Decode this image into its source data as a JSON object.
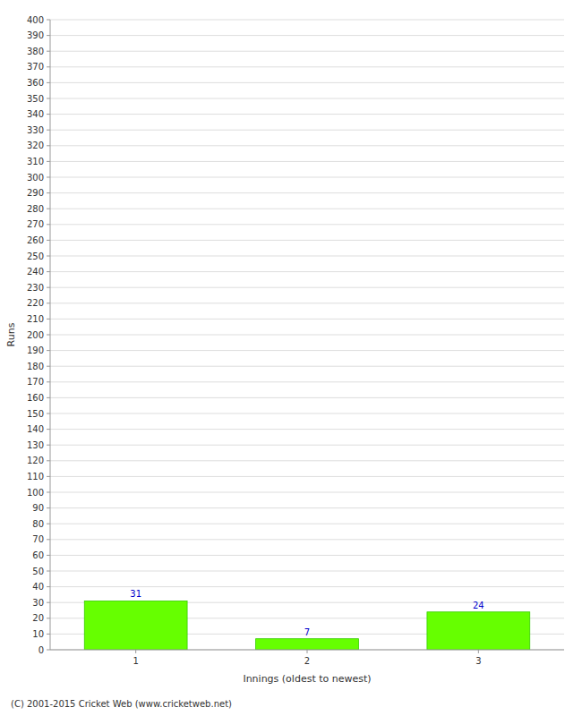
{
  "chart_data": {
    "type": "bar",
    "categories": [
      "1",
      "2",
      "3"
    ],
    "values": [
      31,
      7,
      24
    ],
    "color": "#66ff00",
    "x_label": "Innings (oldest to newest)",
    "y_label": "Runs",
    "annotations": [
      "(C) 2001-2015 Cricket Web (www.cricketweb.net)"
    ],
    "ylim": [
      0,
      400
    ],
    "yticks": [
      0,
      10,
      20,
      30,
      40,
      50,
      60,
      70,
      80,
      90,
      100,
      110,
      120,
      130,
      140,
      150,
      160,
      170,
      180,
      190,
      200,
      210,
      220,
      230,
      240,
      250,
      260,
      270,
      280,
      290,
      300,
      310,
      320,
      330,
      340,
      350,
      360,
      370,
      380,
      390,
      400
    ],
    "grid": true,
    "data_labels": true
  }
}
